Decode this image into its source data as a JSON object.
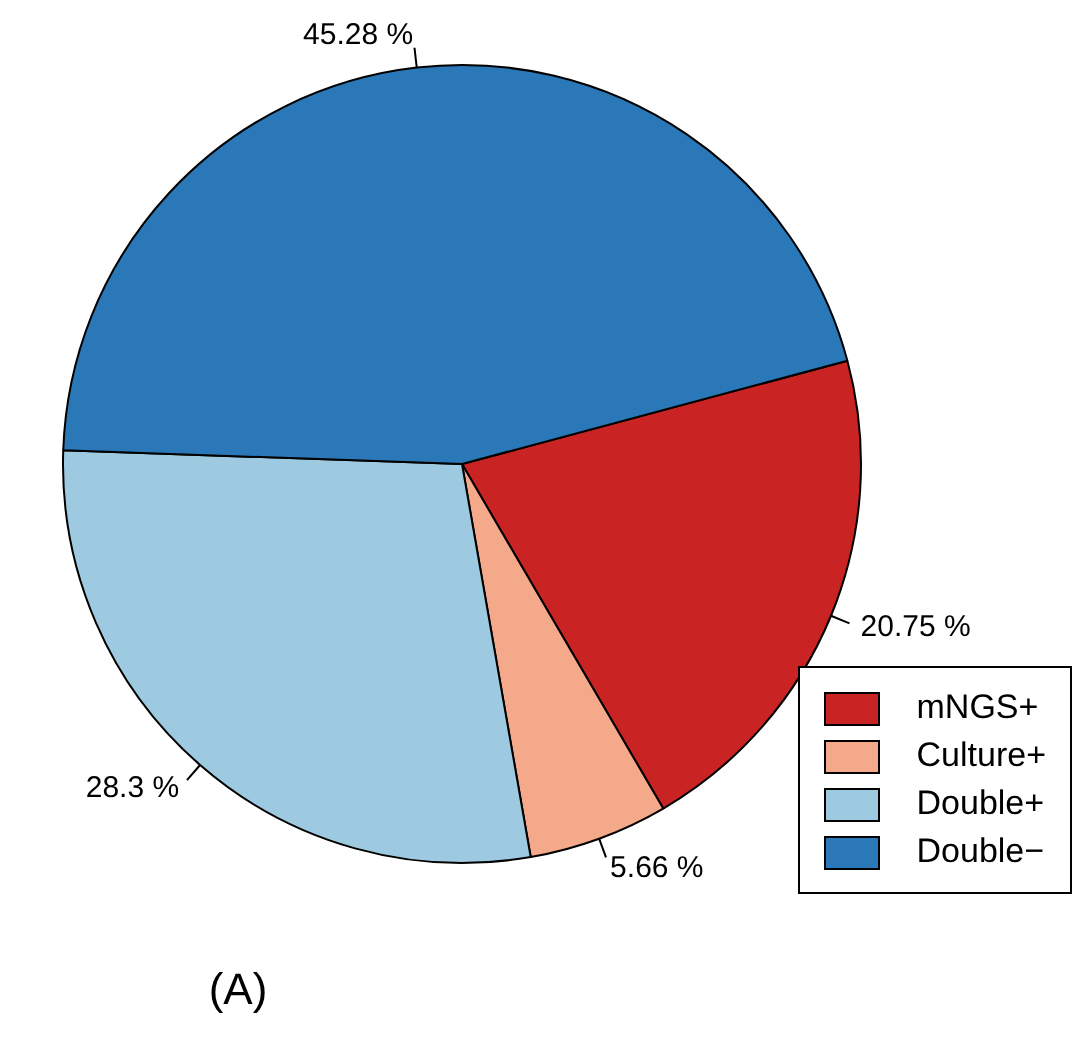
{
  "chart_data": {
    "type": "pie",
    "title": "(A)",
    "categories": [
      "mNGS+",
      "Culture+",
      "Double+",
      "Double−"
    ],
    "values": [
      20.75,
      5.66,
      28.3,
      45.28
    ],
    "value_labels": [
      "20.75 %",
      "5.66 %",
      "28.3 %",
      "45.28 %"
    ],
    "colors": [
      "#ca2323",
      "#f4a98a",
      "#9ecae1",
      "#2a78b8"
    ],
    "legend": "bottom right"
  }
}
